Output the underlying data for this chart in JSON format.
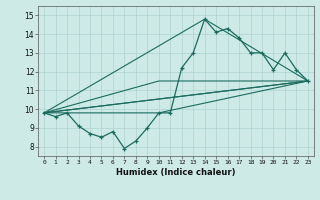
{
  "title": "",
  "xlabel": "Humidex (Indice chaleur)",
  "xlim": [
    -0.5,
    23.5
  ],
  "ylim": [
    7.5,
    15.5
  ],
  "yticks": [
    8,
    9,
    10,
    11,
    12,
    13,
    14,
    15
  ],
  "xticks": [
    0,
    1,
    2,
    3,
    4,
    5,
    6,
    7,
    8,
    9,
    10,
    11,
    12,
    13,
    14,
    15,
    16,
    17,
    18,
    19,
    20,
    21,
    22,
    23
  ],
  "background_color": "#ceeae7",
  "grid_color": "#aed4d0",
  "line_color": "#1a6b5e",
  "line1_x": [
    0,
    1,
    2,
    3,
    4,
    5,
    6,
    7,
    8,
    9,
    10,
    11,
    12,
    13,
    14,
    15,
    16,
    17,
    18,
    19,
    20,
    21,
    22,
    23
  ],
  "line1_y": [
    9.8,
    9.6,
    9.8,
    9.1,
    8.7,
    8.5,
    8.8,
    7.9,
    8.3,
    9.0,
    9.8,
    9.8,
    12.2,
    13.0,
    14.8,
    14.1,
    14.3,
    13.8,
    13.0,
    13.0,
    12.1,
    13.0,
    12.1,
    11.5
  ],
  "line2_x": [
    0,
    23
  ],
  "line2_y": [
    9.8,
    11.5
  ],
  "line3_x": [
    0,
    23
  ],
  "line3_y": [
    9.8,
    11.5
  ],
  "line4_x": [
    0,
    14,
    23
  ],
  "line4_y": [
    9.8,
    14.8,
    11.5
  ],
  "line5_x": [
    0,
    9,
    23
  ],
  "line5_y": [
    9.8,
    9.8,
    11.5
  ]
}
